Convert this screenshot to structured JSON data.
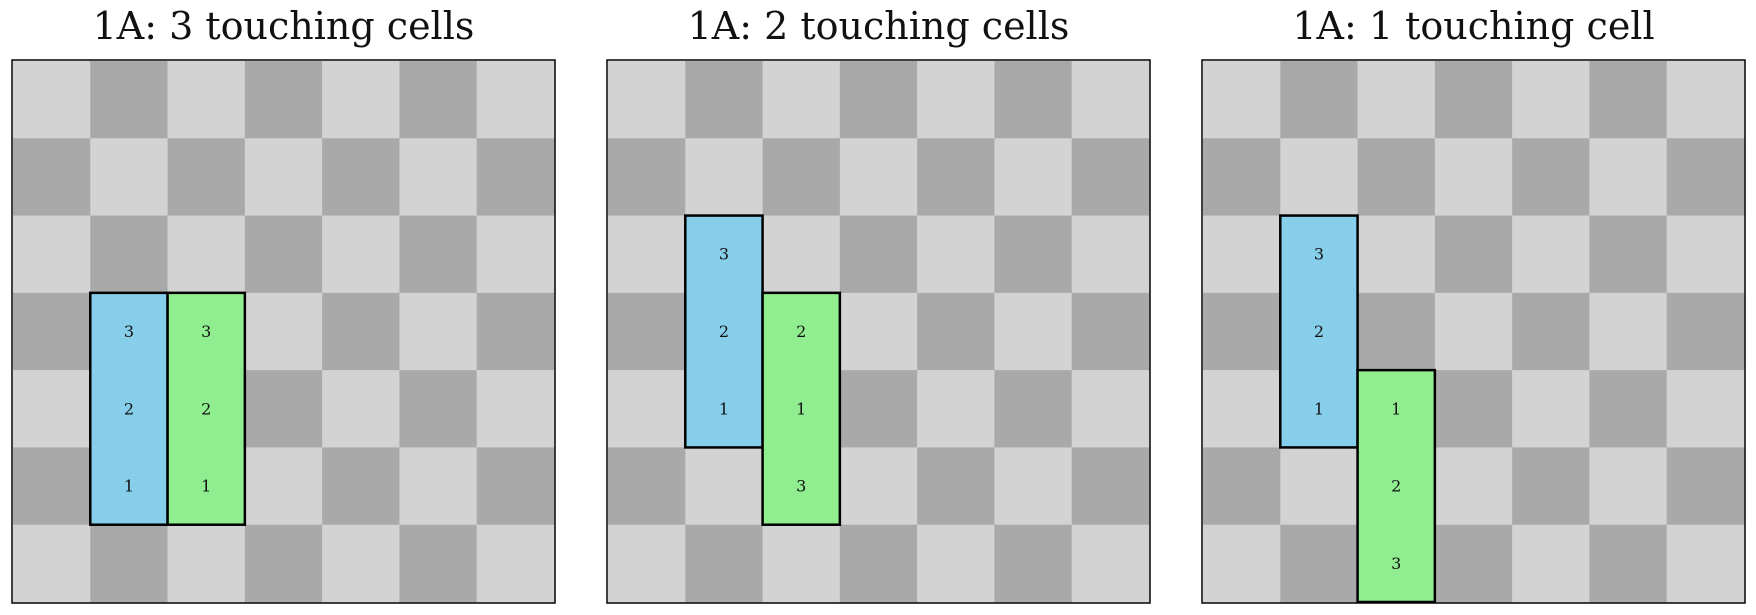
{
  "colors": {
    "light_square": "#d3d3d3",
    "dark_square": "#a9a9a9",
    "blue_piece": "#87ceeb",
    "green_piece": "#90ee90",
    "outline": "#000000"
  },
  "grid_size": 7,
  "panels": [
    {
      "title": "1A: 3 touching cells",
      "pieces": [
        {
          "color": "blue",
          "column": 1,
          "cells": [
            {
              "row": 3,
              "label": "3"
            },
            {
              "row": 4,
              "label": "2"
            },
            {
              "row": 5,
              "label": "1"
            }
          ]
        },
        {
          "color": "green",
          "column": 2,
          "cells": [
            {
              "row": 3,
              "label": "3"
            },
            {
              "row": 4,
              "label": "2"
            },
            {
              "row": 5,
              "label": "1"
            }
          ]
        }
      ]
    },
    {
      "title": "1A: 2 touching cells",
      "pieces": [
        {
          "color": "blue",
          "column": 1,
          "cells": [
            {
              "row": 2,
              "label": "3"
            },
            {
              "row": 3,
              "label": "2"
            },
            {
              "row": 4,
              "label": "1"
            }
          ]
        },
        {
          "color": "green",
          "column": 2,
          "cells": [
            {
              "row": 3,
              "label": "2"
            },
            {
              "row": 4,
              "label": "1"
            },
            {
              "row": 5,
              "label": "3"
            }
          ]
        }
      ]
    },
    {
      "title": "1A: 1 touching cell",
      "pieces": [
        {
          "color": "blue",
          "column": 1,
          "cells": [
            {
              "row": 2,
              "label": "3"
            },
            {
              "row": 3,
              "label": "2"
            },
            {
              "row": 4,
              "label": "1"
            }
          ]
        },
        {
          "color": "green",
          "column": 2,
          "cells": [
            {
              "row": 4,
              "label": "1"
            },
            {
              "row": 5,
              "label": "2"
            },
            {
              "row": 6,
              "label": "3"
            }
          ]
        }
      ]
    }
  ]
}
